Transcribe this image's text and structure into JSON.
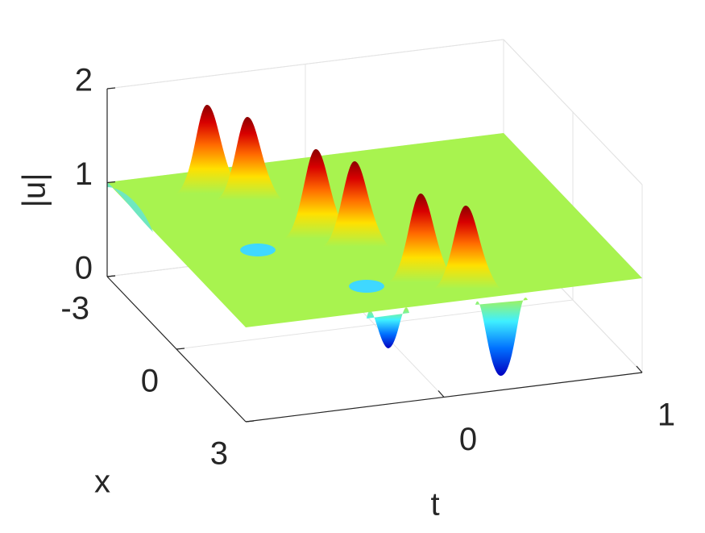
{
  "chart_data": {
    "type": "surface",
    "xlabel": "t",
    "ylabel": "x",
    "zlabel": "|u|",
    "xlim": [
      -1,
      1
    ],
    "xticks": [
      0,
      1
    ],
    "ylim": [
      -3,
      3
    ],
    "yticks": [
      -3,
      0,
      3
    ],
    "zlim": [
      0,
      2
    ],
    "zticks": [
      0,
      1,
      2
    ],
    "grid": true,
    "colormap": "jet"
  }
}
